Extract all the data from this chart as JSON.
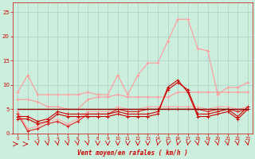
{
  "xlabel": "Vent moyen/en rafales ( km/h )",
  "x": [
    0,
    1,
    2,
    3,
    4,
    5,
    6,
    7,
    8,
    9,
    10,
    11,
    12,
    13,
    14,
    15,
    16,
    17,
    18,
    19,
    20,
    21,
    22,
    23
  ],
  "series": [
    {
      "color": "#ff9999",
      "lw": 0.8,
      "marker": "+",
      "markersize": 3,
      "y": [
        8.5,
        12.0,
        8.0,
        8.0,
        8.0,
        8.0,
        8.0,
        8.5,
        8.0,
        8.0,
        12.0,
        8.0,
        12.0,
        14.5,
        14.5,
        19.0,
        23.5,
        23.5,
        17.5,
        17.0,
        8.0,
        9.5,
        9.5,
        10.5
      ]
    },
    {
      "color": "#ff9999",
      "lw": 0.8,
      "marker": "+",
      "markersize": 3,
      "y": [
        7.0,
        7.0,
        6.5,
        5.5,
        5.5,
        5.0,
        5.0,
        7.0,
        7.5,
        7.5,
        8.0,
        7.5,
        7.5,
        7.5,
        7.5,
        7.5,
        8.5,
        8.5,
        8.5,
        8.5,
        8.5,
        8.5,
        8.5,
        8.5
      ]
    },
    {
      "color": "#ffaaaa",
      "lw": 0.8,
      "marker": "+",
      "markersize": 3,
      "y": [
        4.5,
        1.0,
        1.5,
        2.5,
        3.0,
        2.0,
        3.0,
        4.5,
        4.5,
        4.5,
        5.5,
        5.0,
        5.0,
        5.5,
        5.5,
        5.5,
        5.5,
        5.5,
        5.5,
        5.0,
        5.5,
        5.5,
        5.0,
        5.5
      ]
    },
    {
      "color": "#dd2222",
      "lw": 0.8,
      "marker": "+",
      "markersize": 3,
      "y": [
        4.0,
        0.5,
        1.0,
        2.0,
        2.5,
        1.5,
        2.5,
        4.0,
        4.0,
        4.0,
        5.0,
        4.5,
        4.5,
        5.0,
        5.0,
        5.0,
        5.0,
        5.0,
        5.0,
        4.5,
        5.0,
        5.0,
        4.5,
        5.0
      ]
    },
    {
      "color": "#cc0000",
      "lw": 0.8,
      "marker": "+",
      "markersize": 3,
      "y": [
        3.0,
        3.0,
        2.0,
        2.5,
        4.0,
        3.5,
        3.5,
        3.5,
        3.5,
        3.5,
        4.0,
        3.5,
        3.5,
        3.5,
        4.0,
        9.5,
        11.0,
        8.5,
        3.5,
        3.5,
        4.0,
        4.5,
        3.0,
        5.0
      ]
    },
    {
      "color": "#cc0000",
      "lw": 0.8,
      "marker": "+",
      "markersize": 3,
      "y": [
        3.5,
        3.5,
        2.5,
        3.0,
        4.5,
        4.0,
        4.0,
        4.0,
        4.0,
        4.0,
        4.5,
        4.0,
        4.0,
        4.0,
        4.5,
        9.0,
        10.5,
        9.0,
        4.0,
        4.0,
        4.5,
        5.0,
        3.5,
        5.5
      ]
    },
    {
      "color": "#880000",
      "lw": 1.0,
      "marker": null,
      "markersize": 0,
      "y": [
        5.0,
        5.0,
        5.0,
        5.0,
        5.0,
        5.0,
        5.0,
        5.0,
        5.0,
        5.0,
        5.0,
        5.0,
        5.0,
        5.0,
        5.0,
        5.0,
        5.0,
        5.0,
        5.0,
        5.0,
        5.0,
        5.0,
        5.0,
        5.0
      ]
    }
  ],
  "ylim": [
    0,
    27
  ],
  "xlim": [
    -0.5,
    23.5
  ],
  "yticks": [
    0,
    5,
    10,
    15,
    20,
    25
  ],
  "bg_color": "#cceedd",
  "grid_color": "#aacccc",
  "label_color": "#cc0000",
  "arrow_color": "#cc0000"
}
